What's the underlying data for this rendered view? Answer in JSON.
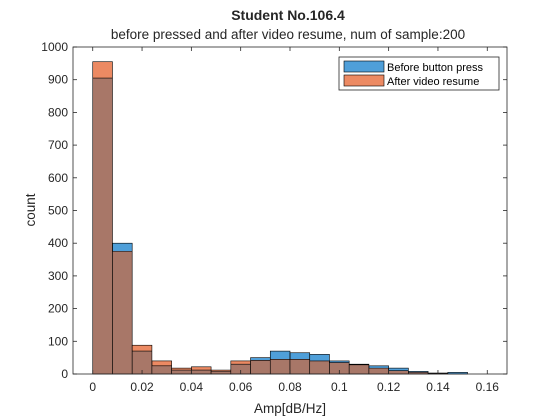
{
  "chart_data": {
    "type": "bar",
    "title": "Student No.106.4",
    "subtitle": "before pressed and after video resume, num of sample:200",
    "xlabel": "Amp[dB/Hz]",
    "ylabel": "count",
    "xlim": [
      -0.008,
      0.168
    ],
    "ylim": [
      0,
      1000
    ],
    "xticks": [
      "0",
      "0.02",
      "0.04",
      "0.06",
      "0.08",
      "0.1",
      "0.12",
      "0.14",
      "0.16"
    ],
    "yticks": [
      "0",
      "100",
      "200",
      "300",
      "400",
      "500",
      "600",
      "700",
      "800",
      "900",
      "1000"
    ],
    "bin_width": 0.008,
    "bin_starts": [
      0,
      0.008,
      0.016,
      0.024,
      0.032,
      0.04,
      0.048,
      0.056,
      0.064,
      0.072,
      0.08,
      0.088,
      0.096,
      0.104,
      0.112,
      0.12,
      0.128,
      0.136,
      0.144,
      0.152
    ],
    "legend_position": "top-right",
    "grid": false,
    "series": [
      {
        "name": "Before button press",
        "color": "#4f9fd9",
        "values": [
          905,
          400,
          70,
          25,
          12,
          12,
          8,
          30,
          50,
          70,
          65,
          60,
          40,
          30,
          25,
          18,
          8,
          3,
          5,
          0
        ]
      },
      {
        "name": "After video resume",
        "color": "#ec8a63",
        "values": [
          955,
          375,
          88,
          40,
          18,
          22,
          12,
          40,
          42,
          45,
          45,
          40,
          35,
          28,
          18,
          10,
          5,
          2,
          0,
          0
        ]
      }
    ]
  }
}
